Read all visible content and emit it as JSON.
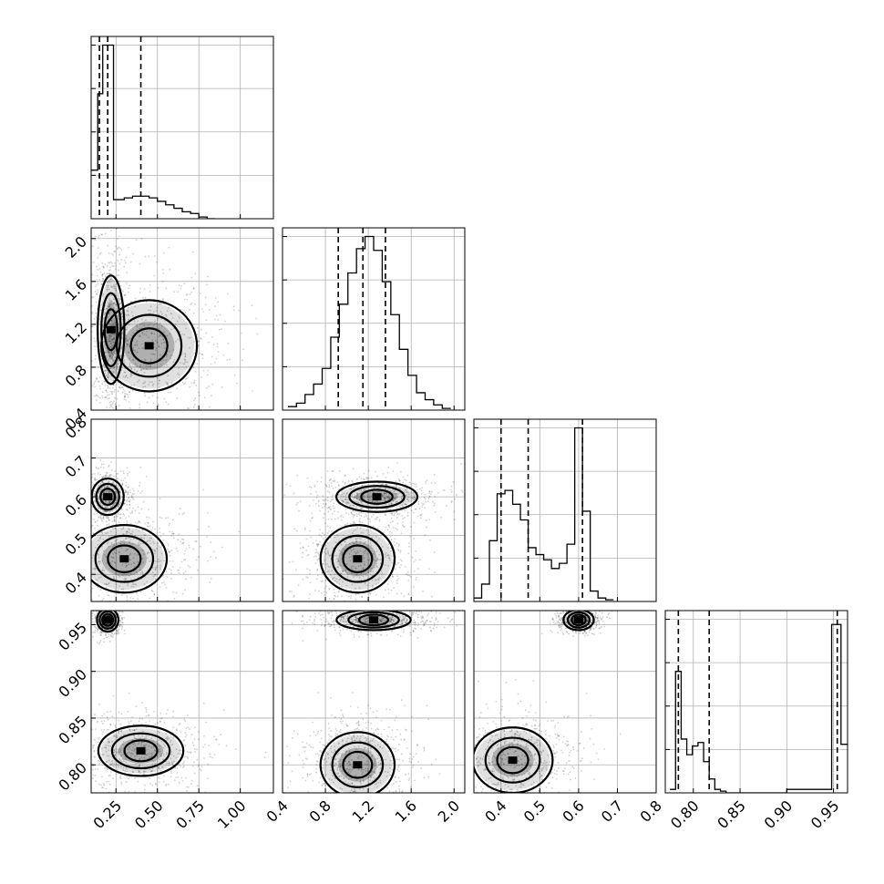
{
  "chart_data": {
    "type": "corner",
    "grid": true,
    "parameters": [
      {
        "index": 0,
        "range": [
          0.1,
          1.2
        ],
        "ticks": [
          0.25,
          0.5,
          0.75,
          1.0
        ],
        "tick_labels": [
          "0.25",
          "0.50",
          "0.75",
          "1.00"
        ],
        "quantiles": [
          0.15,
          0.2,
          0.4
        ]
      },
      {
        "index": 1,
        "range": [
          0.4,
          2.1
        ],
        "ticks": [
          0.4,
          0.8,
          1.2,
          1.6,
          2.0
        ],
        "tick_labels": [
          "0.4",
          "0.8",
          "1.2",
          "1.6",
          "2.0"
        ],
        "quantiles": [
          0.92,
          1.15,
          1.36
        ]
      },
      {
        "index": 2,
        "range": [
          0.33,
          0.8
        ],
        "ticks": [
          0.4,
          0.5,
          0.6,
          0.7,
          0.8
        ],
        "tick_labels": [
          "0.4",
          "0.5",
          "0.6",
          "0.7",
          "0.8"
        ],
        "quantiles": [
          0.4,
          0.47,
          0.61
        ]
      },
      {
        "index": 3,
        "range": [
          0.77,
          0.965
        ],
        "ticks": [
          0.8,
          0.85,
          0.9,
          0.95
        ],
        "tick_labels": [
          "0.80",
          "0.85",
          "0.90",
          "0.95"
        ],
        "quantiles": [
          0.784,
          0.817,
          0.954
        ]
      }
    ],
    "histograms": [
      {
        "param": 0,
        "bins": [
          0.1,
          0.14,
          0.17,
          0.2,
          0.235,
          0.27,
          0.3,
          0.35,
          0.4,
          0.45,
          0.5,
          0.55,
          0.6,
          0.65,
          0.7,
          0.75,
          0.8,
          0.85
        ],
        "counts": [
          28,
          72,
          100,
          100,
          11,
          11,
          12,
          13,
          13,
          12,
          10,
          8,
          6,
          4,
          3,
          1,
          0
        ],
        "ylim": [
          0,
          105
        ]
      },
      {
        "param": 1,
        "bins": [
          0.45,
          0.53,
          0.61,
          0.69,
          0.77,
          0.85,
          0.93,
          1.01,
          1.09,
          1.17,
          1.25,
          1.33,
          1.41,
          1.49,
          1.57,
          1.65,
          1.73,
          1.81,
          1.89,
          1.97
        ],
        "counts": [
          2,
          4,
          9,
          15,
          24,
          42,
          61,
          79,
          93,
          100,
          92,
          74,
          55,
          35,
          20,
          10,
          6,
          3,
          1
        ],
        "ylim": [
          0,
          105
        ]
      },
      {
        "param": 2,
        "bins": [
          0.33,
          0.35,
          0.37,
          0.39,
          0.41,
          0.43,
          0.45,
          0.47,
          0.49,
          0.51,
          0.53,
          0.55,
          0.57,
          0.59,
          0.61,
          0.63,
          0.65,
          0.67,
          0.69
        ],
        "counts": [
          2,
          10,
          35,
          62,
          64,
          56,
          47,
          31,
          27,
          24,
          19,
          22,
          33,
          100,
          52,
          6,
          2,
          1
        ],
        "ylim": [
          0,
          105
        ]
      },
      {
        "param": 3,
        "bins": [
          0.775,
          0.781,
          0.787,
          0.793,
          0.799,
          0.805,
          0.811,
          0.817,
          0.823,
          0.829,
          0.835,
          0.841,
          0.85,
          0.9,
          0.948,
          0.958,
          0.965
        ],
        "counts": [
          2,
          70,
          31,
          22,
          27,
          29,
          18,
          8,
          2,
          1,
          0,
          0,
          0,
          2,
          97,
          28
        ],
        "ylim": [
          0,
          105
        ]
      }
    ],
    "joint": [
      {
        "x": 0,
        "y": 1,
        "modes": [
          {
            "cx": 0.22,
            "cy": 1.15,
            "sx": 0.04,
            "sy": 0.3
          },
          {
            "cx": 0.45,
            "cy": 1.0,
            "sx": 0.17,
            "sy": 0.25
          }
        ]
      },
      {
        "x": 0,
        "y": 2,
        "modes": [
          {
            "cx": 0.2,
            "cy": 0.6,
            "sx": 0.05,
            "sy": 0.025
          },
          {
            "cx": 0.3,
            "cy": 0.44,
            "sx": 0.15,
            "sy": 0.05
          }
        ]
      },
      {
        "x": 1,
        "y": 2,
        "modes": [
          {
            "cx": 1.28,
            "cy": 0.6,
            "sx": 0.22,
            "sy": 0.02
          },
          {
            "cx": 1.1,
            "cy": 0.44,
            "sx": 0.2,
            "sy": 0.05
          }
        ]
      },
      {
        "x": 0,
        "y": 3,
        "modes": [
          {
            "cx": 0.2,
            "cy": 0.955,
            "sx": 0.03,
            "sy": 0.006
          },
          {
            "cx": 0.4,
            "cy": 0.815,
            "sx": 0.15,
            "sy": 0.015
          }
        ]
      },
      {
        "x": 1,
        "y": 3,
        "modes": [
          {
            "cx": 1.25,
            "cy": 0.955,
            "sx": 0.2,
            "sy": 0.005
          },
          {
            "cx": 1.1,
            "cy": 0.8,
            "sx": 0.2,
            "sy": 0.02
          }
        ]
      },
      {
        "x": 2,
        "y": 3,
        "modes": [
          {
            "cx": 0.6,
            "cy": 0.955,
            "sx": 0.02,
            "sy": 0.005
          },
          {
            "cx": 0.43,
            "cy": 0.805,
            "sx": 0.06,
            "sy": 0.02
          }
        ]
      }
    ]
  }
}
